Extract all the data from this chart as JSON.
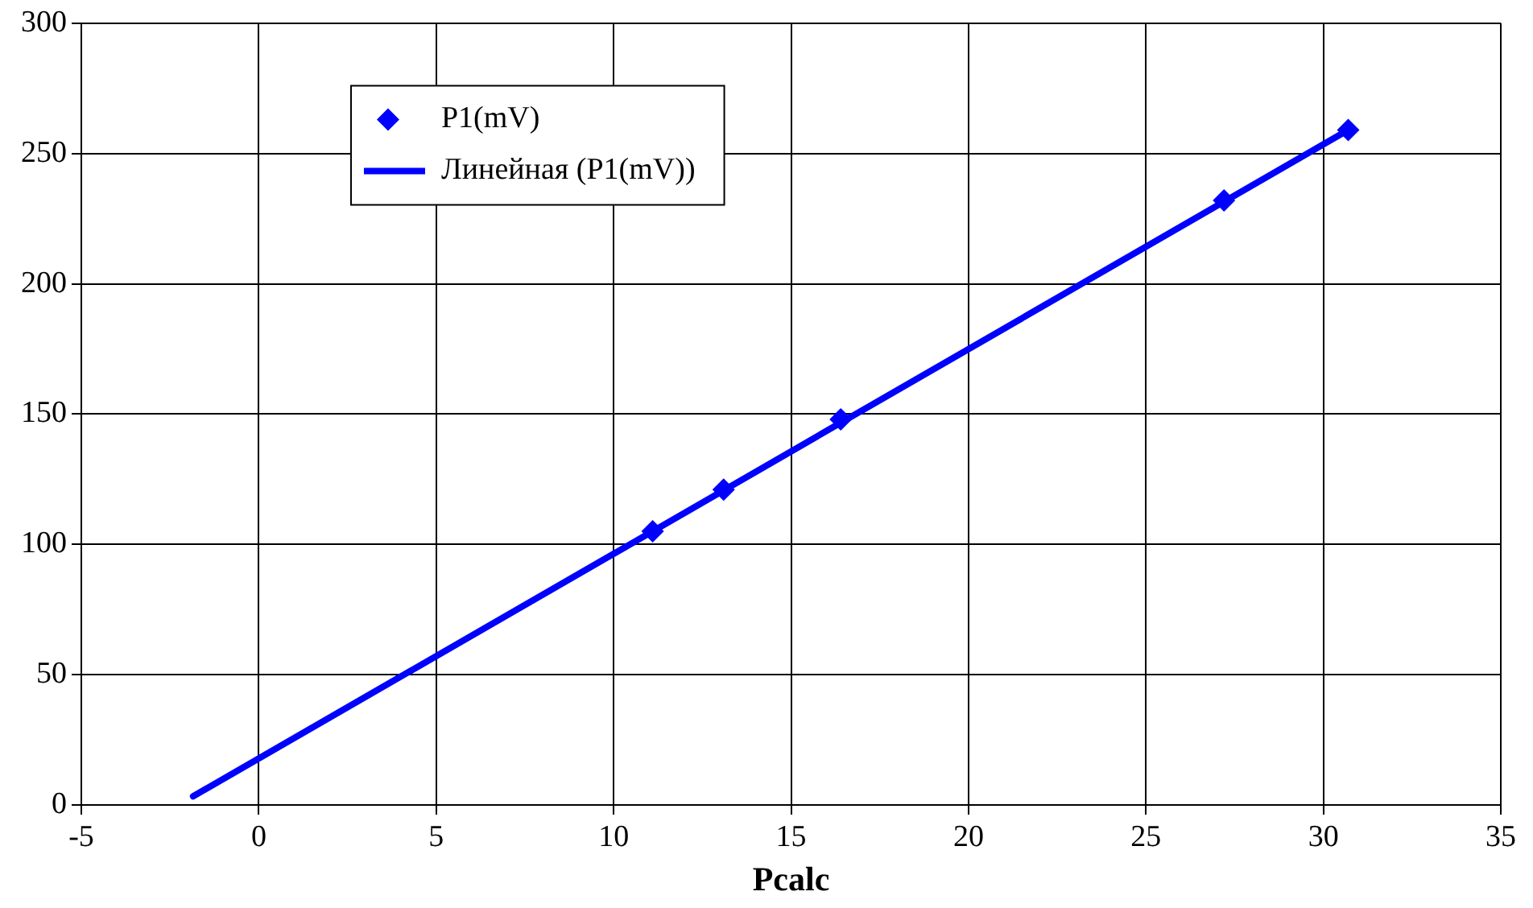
{
  "chart_data": {
    "type": "scatter",
    "xlabel": "Pcalc",
    "xlim": [
      -5,
      35
    ],
    "xticks": [
      -5,
      0,
      5,
      10,
      15,
      20,
      25,
      30,
      35
    ],
    "ylim": [
      0,
      300
    ],
    "yticks": [
      0,
      50,
      100,
      150,
      200,
      250,
      300
    ],
    "grid": true,
    "legend": "top left",
    "marker": "diamond",
    "series": [
      {
        "name": "P1(mV)",
        "type": "scatter",
        "color": "#0000ff",
        "x": [
          11.1,
          13.1,
          16.4,
          27.2,
          30.7
        ],
        "values": [
          105,
          121,
          148,
          232,
          259
        ]
      },
      {
        "name": "Линейная (P1(mV))",
        "type": "line",
        "color": "#0000ff",
        "x": [
          -1.85,
          30.7
        ],
        "values": [
          3.3,
          259
        ],
        "marker": "none",
        "line_style": "solid"
      }
    ]
  }
}
